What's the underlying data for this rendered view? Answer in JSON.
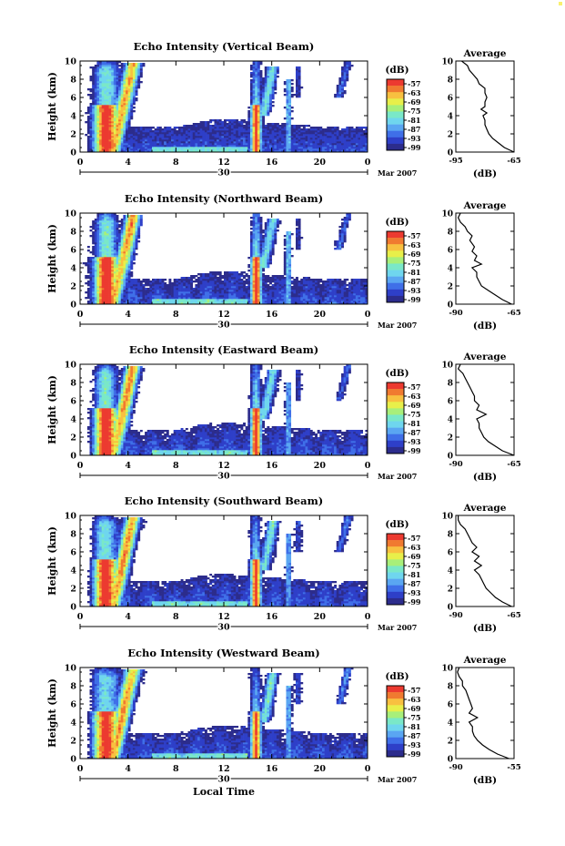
{
  "colors": {
    "scale": [
      "#2c2c8c",
      "#2e3fc8",
      "#3f6fe8",
      "#5aa6f2",
      "#6fd6ee",
      "#7ae8c8",
      "#a8ef7a",
      "#e8ef4a",
      "#f8c040",
      "#f07a30",
      "#ec3a30"
    ]
  },
  "chart_data": [
    {
      "type": "heatmap",
      "title": "Echo Intensity (Vertical Beam)",
      "ylabel": "Height (km)",
      "xlabel": "",
      "xlim": [
        0,
        24
      ],
      "ylim": [
        0,
        10
      ],
      "x_ticks": [
        "0",
        "4",
        "8",
        "12",
        "16",
        "20",
        "0"
      ],
      "y_ticks": [
        "0",
        "2",
        "4",
        "6",
        "8",
        "10"
      ],
      "date_label": "30",
      "month_label": "Mar 2007",
      "colorbar": {
        "unit": "(dB)",
        "labels": [
          "-57",
          "-63",
          "-69",
          "-75",
          "-81",
          "-87",
          "-93",
          "-99"
        ]
      },
      "average": {
        "title": "Average",
        "xlabel": "(dB)",
        "xlim": [
          -95,
          -65
        ],
        "x_ticks": [
          "-95",
          "-65"
        ],
        "y_ticks": [
          "0",
          "2",
          "4",
          "6",
          "8",
          "10"
        ],
        "profile": [
          [
            -65,
            0
          ],
          [
            -70,
            0.5
          ],
          [
            -73,
            1
          ],
          [
            -76,
            1.5
          ],
          [
            -78,
            2
          ],
          [
            -79,
            2.5
          ],
          [
            -80,
            3
          ],
          [
            -80,
            3.5
          ],
          [
            -81,
            4
          ],
          [
            -79,
            4.3
          ],
          [
            -82,
            4.7
          ],
          [
            -80,
            5
          ],
          [
            -80,
            5.5
          ],
          [
            -79,
            6
          ],
          [
            -80,
            6.5
          ],
          [
            -80,
            7
          ],
          [
            -83,
            7.5
          ],
          [
            -84,
            8
          ],
          [
            -86,
            8.5
          ],
          [
            -88,
            9
          ],
          [
            -89,
            9.5
          ],
          [
            -92,
            10
          ]
        ]
      }
    },
    {
      "type": "heatmap",
      "title": "Echo Intensity (Northward Beam)",
      "ylabel": "Height (km)",
      "xlabel": "",
      "xlim": [
        0,
        24
      ],
      "ylim": [
        0,
        10
      ],
      "x_ticks": [
        "0",
        "4",
        "8",
        "12",
        "16",
        "20",
        "0"
      ],
      "y_ticks": [
        "0",
        "2",
        "4",
        "6",
        "8",
        "10"
      ],
      "date_label": "30",
      "month_label": "Mar 2007",
      "colorbar": {
        "unit": "(dB)",
        "labels": [
          "-57",
          "-63",
          "-69",
          "-75",
          "-81",
          "-87",
          "-93",
          "-99"
        ]
      },
      "average": {
        "title": "Average",
        "xlabel": "(dB)",
        "xlim": [
          -90,
          -65
        ],
        "x_ticks": [
          "-90",
          "-65"
        ],
        "y_ticks": [
          "0",
          "2",
          "4",
          "6",
          "8",
          "10"
        ],
        "profile": [
          [
            -66,
            0
          ],
          [
            -70,
            0.5
          ],
          [
            -73,
            1
          ],
          [
            -76,
            1.5
          ],
          [
            -79,
            2
          ],
          [
            -80,
            2.5
          ],
          [
            -81,
            3
          ],
          [
            -81,
            3.5
          ],
          [
            -83,
            4
          ],
          [
            -79,
            4.4
          ],
          [
            -82,
            4.8
          ],
          [
            -81,
            5.3
          ],
          [
            -83,
            5.8
          ],
          [
            -82,
            6.3
          ],
          [
            -84,
            7
          ],
          [
            -83,
            7.5
          ],
          [
            -85,
            8
          ],
          [
            -86,
            8.5
          ],
          [
            -88,
            9
          ],
          [
            -89,
            9.5
          ],
          [
            -88,
            10
          ]
        ]
      }
    },
    {
      "type": "heatmap",
      "title": "Echo Intensity (Eastward Beam)",
      "ylabel": "Height (km)",
      "xlabel": "",
      "xlim": [
        0,
        24
      ],
      "ylim": [
        0,
        10
      ],
      "x_ticks": [
        "0",
        "4",
        "8",
        "12",
        "16",
        "20",
        "0"
      ],
      "y_ticks": [
        "0",
        "2",
        "4",
        "6",
        "8",
        "10"
      ],
      "date_label": "30",
      "month_label": "Mar 2007",
      "colorbar": {
        "unit": "(dB)",
        "labels": [
          "-57",
          "-63",
          "-69",
          "-75",
          "-81",
          "-87",
          "-93",
          "-99"
        ]
      },
      "average": {
        "title": "Average",
        "xlabel": "(dB)",
        "xlim": [
          -90,
          -65
        ],
        "x_ticks": [
          "-90",
          "-65"
        ],
        "y_ticks": [
          "0",
          "2",
          "4",
          "6",
          "8",
          "10"
        ],
        "profile": [
          [
            -65,
            0
          ],
          [
            -70,
            0.5
          ],
          [
            -73,
            1
          ],
          [
            -76,
            1.5
          ],
          [
            -78,
            2
          ],
          [
            -79,
            2.5
          ],
          [
            -80,
            3
          ],
          [
            -80,
            3.5
          ],
          [
            -81,
            4
          ],
          [
            -77,
            4.5
          ],
          [
            -81,
            5
          ],
          [
            -80,
            5.5
          ],
          [
            -82,
            6
          ],
          [
            -82,
            6.5
          ],
          [
            -83,
            7
          ],
          [
            -84,
            7.5
          ],
          [
            -85,
            8
          ],
          [
            -86,
            8.5
          ],
          [
            -87,
            9
          ],
          [
            -89,
            9.5
          ],
          [
            -88,
            10
          ]
        ]
      }
    },
    {
      "type": "heatmap",
      "title": "Echo Intensity (Southward Beam)",
      "ylabel": "Height (km)",
      "xlabel": "",
      "xlim": [
        0,
        24
      ],
      "ylim": [
        0,
        10
      ],
      "x_ticks": [
        "0",
        "4",
        "8",
        "12",
        "16",
        "20",
        "0"
      ],
      "y_ticks": [
        "0",
        "2",
        "4",
        "6",
        "8",
        "10"
      ],
      "date_label": "30",
      "month_label": "Mar 2007",
      "colorbar": {
        "unit": "(dB)",
        "labels": [
          "-57",
          "-63",
          "-69",
          "-75",
          "-81",
          "-87",
          "-93",
          "-99"
        ]
      },
      "average": {
        "title": "Average",
        "xlabel": "(dB)",
        "xlim": [
          -90,
          -65
        ],
        "x_ticks": [
          "-90",
          "-65"
        ],
        "y_ticks": [
          "0",
          "2",
          "4",
          "6",
          "8",
          "10"
        ],
        "profile": [
          [
            -66,
            0
          ],
          [
            -70,
            0.5
          ],
          [
            -73,
            1
          ],
          [
            -75,
            1.5
          ],
          [
            -77,
            2
          ],
          [
            -78,
            2.5
          ],
          [
            -79,
            3
          ],
          [
            -80,
            3.5
          ],
          [
            -82,
            4
          ],
          [
            -79,
            4.5
          ],
          [
            -82,
            5
          ],
          [
            -80,
            5.5
          ],
          [
            -83,
            6
          ],
          [
            -81,
            6.5
          ],
          [
            -83,
            7
          ],
          [
            -84,
            7.5
          ],
          [
            -85,
            8
          ],
          [
            -86,
            8.5
          ],
          [
            -88,
            9
          ],
          [
            -89,
            9.5
          ],
          [
            -89,
            10
          ]
        ]
      }
    },
    {
      "type": "heatmap",
      "title": "Echo Intensity (Westward Beam)",
      "ylabel": "Height (km)",
      "xlabel": "Local Time",
      "xlim": [
        0,
        24
      ],
      "ylim": [
        0,
        10
      ],
      "x_ticks": [
        "0",
        "4",
        "8",
        "12",
        "16",
        "20",
        "0"
      ],
      "y_ticks": [
        "0",
        "2",
        "4",
        "6",
        "8",
        "10"
      ],
      "date_label": "30",
      "month_label": "Mar 2007",
      "colorbar": {
        "unit": "(dB)",
        "labels": [
          "-57",
          "-63",
          "-69",
          "-75",
          "-81",
          "-87",
          "-93",
          "-99"
        ]
      },
      "average": {
        "title": "Average",
        "xlabel": "(dB)",
        "xlim": [
          -90,
          -55
        ],
        "x_ticks": [
          "-90",
          "-55"
        ],
        "y_ticks": [
          "0",
          "2",
          "4",
          "6",
          "8",
          "10"
        ],
        "profile": [
          [
            -58,
            0
          ],
          [
            -65,
            0.5
          ],
          [
            -70,
            1
          ],
          [
            -74,
            1.5
          ],
          [
            -77,
            2
          ],
          [
            -79,
            2.5
          ],
          [
            -80,
            3
          ],
          [
            -80,
            3.5
          ],
          [
            -82,
            4
          ],
          [
            -77,
            4.5
          ],
          [
            -82,
            5
          ],
          [
            -80,
            5.5
          ],
          [
            -81,
            6
          ],
          [
            -82,
            6.5
          ],
          [
            -83,
            7
          ],
          [
            -84,
            7.5
          ],
          [
            -86,
            8
          ],
          [
            -86,
            8.5
          ],
          [
            -88,
            9
          ],
          [
            -89,
            9.5
          ],
          [
            -88,
            10
          ]
        ]
      }
    }
  ]
}
